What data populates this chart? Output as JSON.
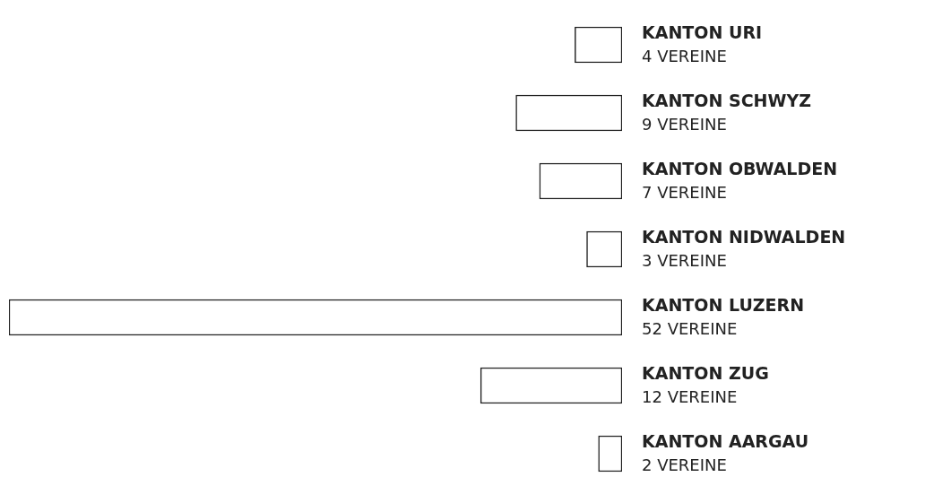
{
  "chart_data": {
    "type": "bar",
    "orientation": "horizontal",
    "categories": [
      "KANTON URI",
      "KANTON SCHWYZ",
      "KANTON OBWALDEN",
      "KANTON NIDWALDEN",
      "KANTON LUZERN",
      "KANTON ZUG",
      "KANTON AARGAU"
    ],
    "values": [
      4,
      9,
      7,
      3,
      52,
      12,
      2
    ],
    "value_labels": [
      "4 VEREINE",
      "9 VEREINE",
      "7 VEREINE",
      "3 VEREINE",
      "52 VEREINE",
      "12 VEREINE",
      "2 VEREINE"
    ],
    "color": "#ffffff",
    "tick_labels": false,
    "legend": false
  }
}
